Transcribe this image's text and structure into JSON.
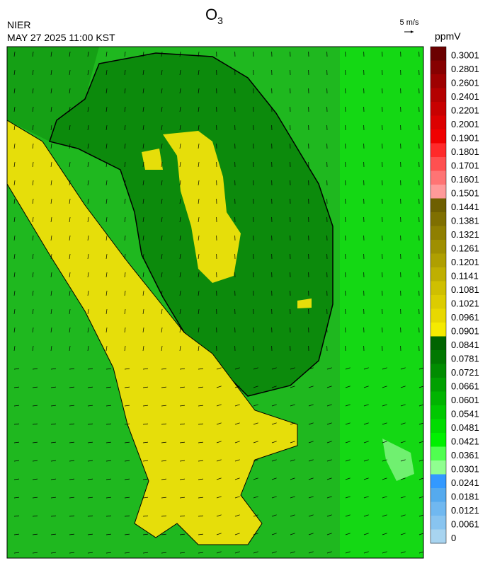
{
  "header": {
    "agency": "NIER",
    "timestamp": "MAY 27 2025 11:00 KST",
    "title": {
      "base": "O",
      "subscript": "3"
    }
  },
  "wind_reference": {
    "label": "5 m/s"
  },
  "colorbar": {
    "unit": "ppmV",
    "ticks": [
      0.3001,
      0.2801,
      0.2601,
      0.2401,
      0.2201,
      0.2001,
      0.1901,
      0.1801,
      0.1701,
      0.1601,
      0.1501,
      0.1441,
      0.1381,
      0.1321,
      0.1261,
      0.1201,
      0.1141,
      0.1081,
      0.1021,
      0.0961,
      0.0901,
      0.0841,
      0.0781,
      0.0721,
      0.0661,
      0.0601,
      0.0541,
      0.0481,
      0.0421,
      0.0361,
      0.0301,
      0.0241,
      0.0181,
      0.0121,
      0.0061,
      0
    ],
    "colors": [
      "#6b0000",
      "#860000",
      "#9e0000",
      "#b40000",
      "#c80000",
      "#dc0000",
      "#f00000",
      "#ff2a2a",
      "#ff5050",
      "#ff7474",
      "#ff9a9a",
      "#6e5f00",
      "#7f6f00",
      "#8f7f00",
      "#9f8f00",
      "#af9f00",
      "#bfaf00",
      "#cfbf00",
      "#dccc00",
      "#e8d800",
      "#f5ea00",
      "#006400",
      "#007800",
      "#008c00",
      "#00a000",
      "#00b400",
      "#00c800",
      "#00dc00",
      "#00f000",
      "#50ff50",
      "#90ff90",
      "#3399ff",
      "#55aaee",
      "#70b8f0",
      "#88c4f0",
      "#a8d4f0"
    ]
  }
}
